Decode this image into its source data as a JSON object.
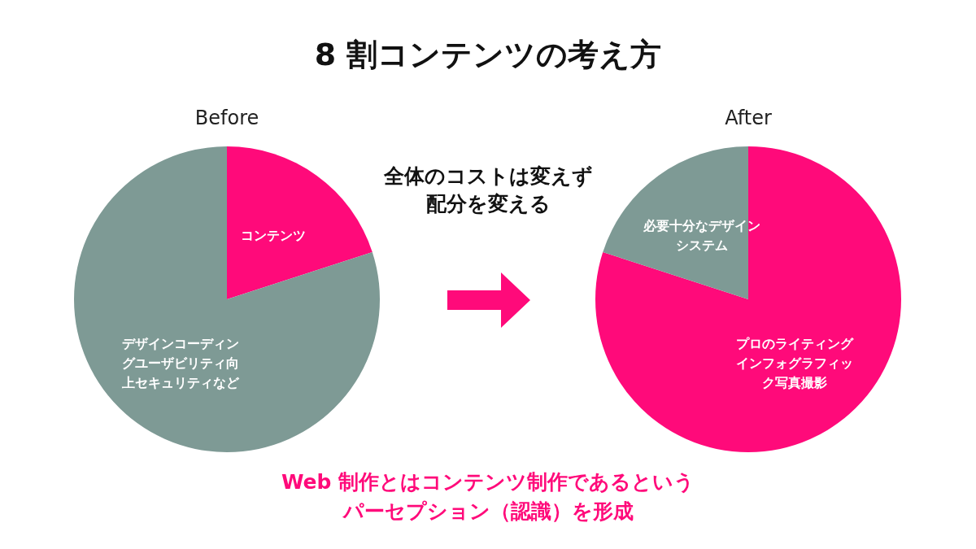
{
  "chart_data": [
    {
      "type": "other",
      "title": "8 割コンテンツの考え方",
      "annotations": [
        "全体のコストは変えず配分を変える",
        "Web 制作とはコンテンツ制作であるというパーセプション（認識）を形成"
      ]
    },
    {
      "type": "pie",
      "title": "Before",
      "categories": [
        "コンテンツ",
        "デザインコーディングユーザビリティ向上セキュリティなど"
      ],
      "values": [
        20,
        80
      ],
      "colors": [
        "#ff0a7a",
        "#7e9a95"
      ]
    },
    {
      "type": "pie",
      "title": "After",
      "categories": [
        "プロのライティングインフォグラフィック写真撮影",
        "必要十分なデザインシステム"
      ],
      "values": [
        80,
        20
      ],
      "colors": [
        "#ff0a7a",
        "#7e9a95"
      ]
    }
  ]
}
